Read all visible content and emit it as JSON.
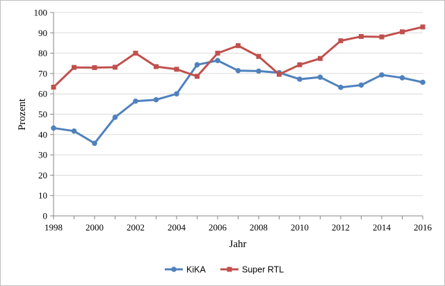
{
  "chart_data": {
    "type": "line",
    "title": "",
    "xlabel": "Jahr",
    "ylabel": "Prozent",
    "x": [
      1998,
      1999,
      2000,
      2001,
      2002,
      2003,
      2004,
      2005,
      2006,
      2007,
      2008,
      2009,
      2010,
      2011,
      2012,
      2013,
      2014,
      2015,
      2016
    ],
    "xlim": [
      1998,
      2016
    ],
    "xticks": [
      1998,
      2000,
      2002,
      2004,
      2006,
      2008,
      2010,
      2012,
      2014,
      2016
    ],
    "ylim": [
      0,
      100
    ],
    "yticks": [
      0,
      10,
      20,
      30,
      40,
      50,
      60,
      70,
      80,
      90,
      100
    ],
    "grid": "horizontal",
    "legend_position": "bottom",
    "series": [
      {
        "name": "KiKA",
        "color": "#4f81bd",
        "marker": "circle",
        "values": [
          43.2,
          41.7,
          35.7,
          48.5,
          56.4,
          57.1,
          60.0,
          74.3,
          76.4,
          71.4,
          71.2,
          70.4,
          67.2,
          68.2,
          63.2,
          64.3,
          69.3,
          67.9,
          65.7
        ]
      },
      {
        "name": "Super RTL",
        "color": "#c0504d",
        "marker": "square",
        "values": [
          63.3,
          73.0,
          72.9,
          73.1,
          80.0,
          73.4,
          72.1,
          68.6,
          80.0,
          83.7,
          78.4,
          69.6,
          74.3,
          77.4,
          86.1,
          88.2,
          88.0,
          90.5,
          92.9
        ]
      }
    ]
  }
}
